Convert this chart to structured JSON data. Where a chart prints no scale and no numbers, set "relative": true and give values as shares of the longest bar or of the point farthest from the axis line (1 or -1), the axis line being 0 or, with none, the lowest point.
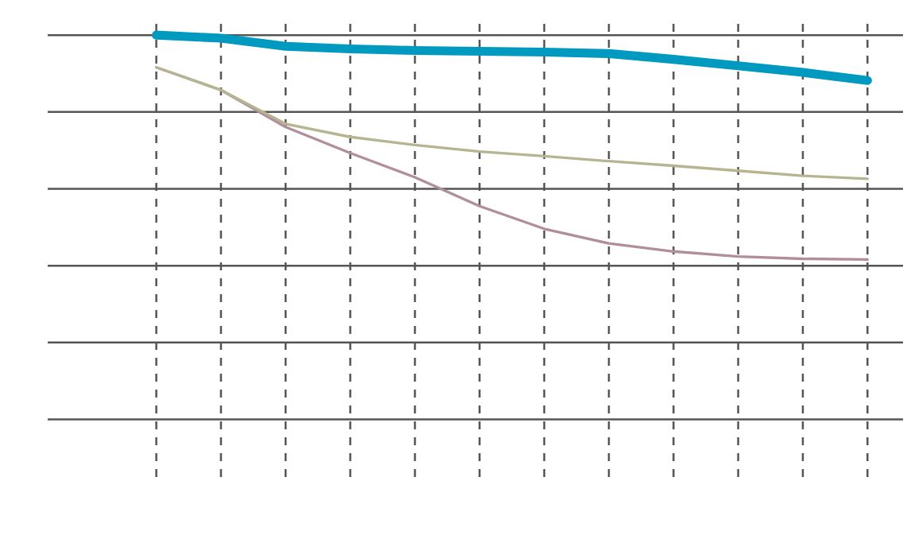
{
  "chart_data": {
    "type": "line",
    "relative": true,
    "categories": [
      null,
      null,
      null,
      null,
      null,
      null,
      null,
      null,
      null,
      null,
      null,
      null
    ],
    "grid": true,
    "line_style": "solid",
    "series": [
      {
        "color": "#0099c0",
        "values": [
          1.0,
          0.992,
          0.971,
          0.964,
          0.96,
          0.958,
          0.956,
          0.952,
          0.937,
          0.92,
          0.903,
          0.882
        ]
      },
      {
        "color": "#b5b591",
        "values": [
          0.916,
          0.857,
          0.769,
          0.735,
          0.714,
          0.697,
          0.685,
          0.672,
          0.66,
          0.647,
          0.634,
          0.626
        ]
      },
      {
        "color": "#b28d9c",
        "values": [
          0.916,
          0.857,
          0.761,
          0.693,
          0.63,
          0.555,
          0.496,
          0.458,
          0.437,
          0.424,
          0.418,
          0.416
        ]
      }
    ]
  }
}
